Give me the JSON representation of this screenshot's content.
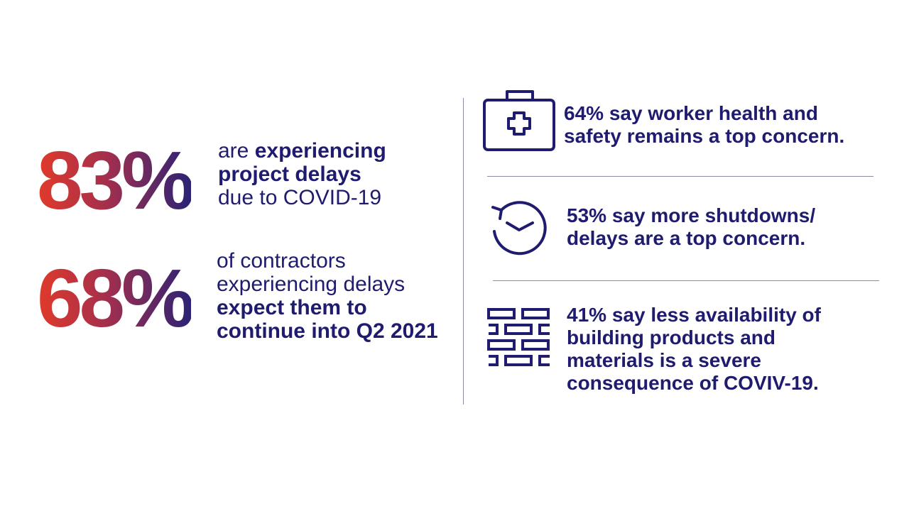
{
  "stats": [
    {
      "number": "83%",
      "desc_line1_pre": "are ",
      "desc_line1_bold": "experiencing",
      "desc_line2_bold": "project delays",
      "desc_line3": "due to COVID-19"
    },
    {
      "number": "68%",
      "desc_line1": "of contractors",
      "desc_line2": "experiencing delays",
      "desc_line3_bold": "expect them to",
      "desc_line4_bold": "continue into Q2 2021"
    }
  ],
  "facts": [
    {
      "icon": "first-aid-kit-icon",
      "lines": [
        "64% say worker health and",
        "safety remains a top concern."
      ]
    },
    {
      "icon": "clock-icon",
      "lines": [
        "53% say more shutdowns/",
        "delays are a top concern."
      ]
    },
    {
      "icon": "bricks-icon",
      "lines": [
        "41% say less availability of",
        "building products and",
        "materials is a severe",
        "consequence of COVIV-19."
      ]
    }
  ],
  "colors": {
    "navy": "#1f1b6e",
    "gradient_start": "#e23a2a",
    "gradient_mid": "#a42f4d",
    "gradient_end": "#2b2275",
    "divider": "#8a8aa8"
  }
}
